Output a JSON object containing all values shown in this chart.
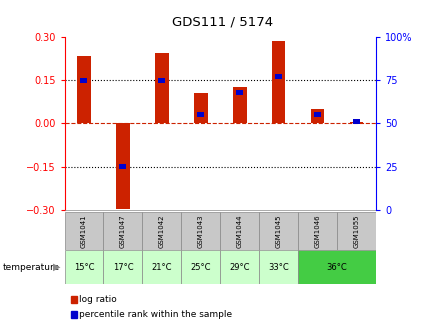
{
  "title": "GDS111 / 5174",
  "samples": [
    "GSM1041",
    "GSM1047",
    "GSM1042",
    "GSM1043",
    "GSM1044",
    "GSM1045",
    "GSM1046",
    "GSM1055"
  ],
  "log_ratios": [
    0.235,
    -0.295,
    0.245,
    0.105,
    0.125,
    0.285,
    0.05,
    0.005
  ],
  "percentile_ranks": [
    75,
    25,
    75,
    55,
    68,
    77,
    55,
    51
  ],
  "ylim": [
    -0.3,
    0.3
  ],
  "yticks_left": [
    -0.3,
    -0.15,
    0,
    0.15,
    0.3
  ],
  "yticks_right_labels": [
    "0",
    "25",
    "50",
    "75",
    "100%"
  ],
  "bar_color_red": "#cc2200",
  "bar_color_blue": "#0000cc",
  "zero_line_color": "#cc2200",
  "gsm_row_color": "#c8c8c8",
  "temp_row_light": "#ccffcc",
  "temp_row_dark": "#44cc44",
  "bar_width": 0.35,
  "blue_bar_width": 0.18,
  "temp_defs": [
    [
      0,
      1,
      "15°C",
      "#ccffcc"
    ],
    [
      1,
      2,
      "17°C",
      "#ccffcc"
    ],
    [
      2,
      3,
      "21°C",
      "#ccffcc"
    ],
    [
      3,
      4,
      "25°C",
      "#ccffcc"
    ],
    [
      4,
      5,
      "29°C",
      "#ccffcc"
    ],
    [
      5,
      6,
      "33°C",
      "#ccffcc"
    ],
    [
      6,
      8,
      "36°C",
      "#44cc44"
    ]
  ]
}
